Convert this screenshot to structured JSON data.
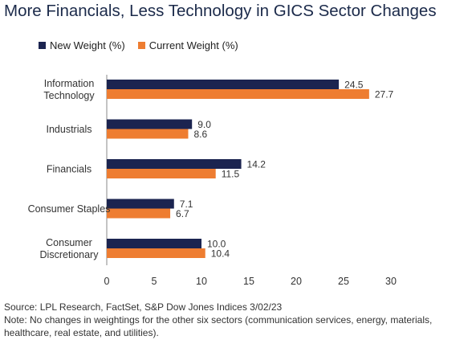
{
  "title": "More Financials, Less Technology in GICS Sector Changes",
  "colors": {
    "new": "#1b2450",
    "current": "#ee7d31"
  },
  "chart_data": {
    "type": "bar",
    "orientation": "horizontal",
    "categories": [
      [
        "Information",
        "Technology"
      ],
      [
        "Industrials"
      ],
      [
        "Financials"
      ],
      [
        "Consumer Staples"
      ],
      [
        "Consumer",
        "Discretionary"
      ]
    ],
    "series": [
      {
        "name": "New Weight (%)",
        "values": [
          24.5,
          9.0,
          14.2,
          7.1,
          10.0
        ]
      },
      {
        "name": "Current Weight (%)",
        "values": [
          27.7,
          8.6,
          11.5,
          6.7,
          10.4
        ]
      }
    ],
    "value_labels": [
      [
        "24.5",
        "9.0",
        "14.2",
        "7.1",
        "10.0"
      ],
      [
        "27.7",
        "8.6",
        "11.5",
        "6.7",
        "10.4"
      ]
    ],
    "xlim": [
      0,
      30
    ],
    "xticks": [
      0,
      5,
      10,
      15,
      20,
      25,
      30
    ],
    "grid": false,
    "legend_position": "top-left"
  },
  "source": "Source: LPL Research, FactSet, S&P Dow Jones Indices 3/02/23",
  "note": "Note: No changes in weightings for the other six sectors (communication services, energy, materials,\nhealthcare, real estate, and utilities)."
}
